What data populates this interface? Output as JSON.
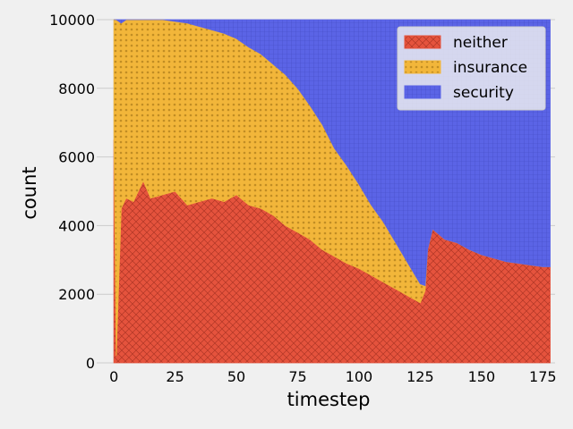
{
  "chart_data": {
    "type": "area",
    "stacked": true,
    "title": "",
    "xlabel": "timestep",
    "ylabel": "count",
    "xlim": [
      -7,
      180
    ],
    "ylim": [
      0,
      10000
    ],
    "xticks": [
      0,
      25,
      50,
      75,
      100,
      125,
      150,
      175
    ],
    "yticks": [
      0,
      2000,
      4000,
      6000,
      8000,
      10000
    ],
    "grid": true,
    "legend_position": "top-right",
    "total": 10000,
    "series": [
      {
        "name": "neither",
        "color": "#e5533d",
        "hatch": "crosshatch",
        "points": [
          [
            0,
            6500
          ],
          [
            1,
            200
          ],
          [
            3,
            4500
          ],
          [
            5,
            4800
          ],
          [
            8,
            4700
          ],
          [
            10,
            5000
          ],
          [
            12,
            5300
          ],
          [
            15,
            4800
          ],
          [
            20,
            4900
          ],
          [
            25,
            5000
          ],
          [
            30,
            4600
          ],
          [
            35,
            4700
          ],
          [
            40,
            4800
          ],
          [
            45,
            4700
          ],
          [
            50,
            4900
          ],
          [
            55,
            4600
          ],
          [
            60,
            4500
          ],
          [
            65,
            4300
          ],
          [
            70,
            4000
          ],
          [
            75,
            3800
          ],
          [
            80,
            3600
          ],
          [
            85,
            3300
          ],
          [
            90,
            3100
          ],
          [
            95,
            2900
          ],
          [
            100,
            2750
          ],
          [
            105,
            2550
          ],
          [
            110,
            2350
          ],
          [
            115,
            2150
          ],
          [
            120,
            1950
          ],
          [
            125,
            1750
          ],
          [
            127,
            2100
          ],
          [
            128,
            3300
          ],
          [
            130,
            3900
          ],
          [
            135,
            3600
          ],
          [
            140,
            3500
          ],
          [
            145,
            3300
          ],
          [
            150,
            3150
          ],
          [
            155,
            3050
          ],
          [
            160,
            2950
          ],
          [
            165,
            2900
          ],
          [
            170,
            2850
          ],
          [
            175,
            2800
          ],
          [
            178,
            2800
          ]
        ]
      },
      {
        "name": "insurance",
        "color": "#f2b63a",
        "hatch": "dots",
        "points": [
          [
            0,
            3500
          ],
          [
            1,
            9800
          ],
          [
            3,
            5400
          ],
          [
            5,
            5200
          ],
          [
            8,
            5300
          ],
          [
            10,
            5000
          ],
          [
            12,
            4700
          ],
          [
            15,
            5200
          ],
          [
            20,
            5100
          ],
          [
            25,
            4950
          ],
          [
            30,
            5300
          ],
          [
            35,
            5100
          ],
          [
            40,
            4900
          ],
          [
            45,
            4900
          ],
          [
            50,
            4550
          ],
          [
            55,
            4600
          ],
          [
            60,
            4500
          ],
          [
            65,
            4400
          ],
          [
            70,
            4400
          ],
          [
            75,
            4200
          ],
          [
            80,
            3900
          ],
          [
            85,
            3650
          ],
          [
            90,
            3150
          ],
          [
            95,
            2850
          ],
          [
            100,
            2450
          ],
          [
            105,
            2050
          ],
          [
            110,
            1750
          ],
          [
            115,
            1350
          ],
          [
            120,
            950
          ],
          [
            125,
            550
          ],
          [
            127,
            150
          ],
          [
            128,
            0
          ],
          [
            130,
            0
          ],
          [
            178,
            0
          ]
        ]
      },
      {
        "name": "security",
        "color": "#5b64e6",
        "hatch": "grid",
        "points": [
          [
            0,
            0
          ],
          [
            1,
            0
          ],
          [
            3,
            100
          ],
          [
            5,
            0
          ],
          [
            8,
            0
          ],
          [
            10,
            0
          ],
          [
            12,
            0
          ],
          [
            15,
            0
          ],
          [
            20,
            0
          ],
          [
            25,
            50
          ],
          [
            30,
            100
          ],
          [
            35,
            200
          ],
          [
            40,
            300
          ],
          [
            45,
            400
          ],
          [
            50,
            550
          ],
          [
            55,
            800
          ],
          [
            60,
            1000
          ],
          [
            65,
            1300
          ],
          [
            70,
            1600
          ],
          [
            75,
            2000
          ],
          [
            80,
            2500
          ],
          [
            85,
            3050
          ],
          [
            90,
            3750
          ],
          [
            95,
            4250
          ],
          [
            100,
            4800
          ],
          [
            105,
            5400
          ],
          [
            110,
            5900
          ],
          [
            115,
            6500
          ],
          [
            120,
            7100
          ],
          [
            125,
            7700
          ],
          [
            127,
            7750
          ],
          [
            128,
            6700
          ],
          [
            130,
            6100
          ],
          [
            135,
            6400
          ],
          [
            140,
            6500
          ],
          [
            145,
            6700
          ],
          [
            150,
            6850
          ],
          [
            155,
            6950
          ],
          [
            160,
            7050
          ],
          [
            165,
            7100
          ],
          [
            170,
            7150
          ],
          [
            175,
            7200
          ],
          [
            178,
            7200
          ]
        ]
      }
    ]
  }
}
